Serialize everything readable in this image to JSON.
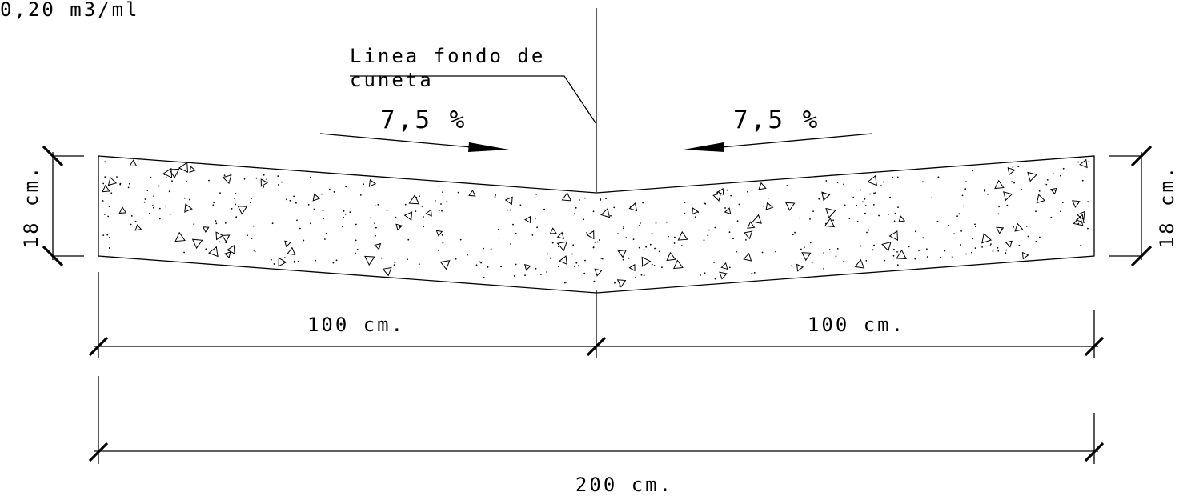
{
  "volume_label": "0,20 m3/ml",
  "axis_label": {
    "line1": "Linea fondo de",
    "line2": "cuneta"
  },
  "slope_left": "7,5 %",
  "slope_right": "7,5 %",
  "thickness_left": "18 cm.",
  "thickness_right": "18 cm.",
  "width_left": "100 cm.",
  "width_right": "100 cm.",
  "width_total": "200 cm."
}
